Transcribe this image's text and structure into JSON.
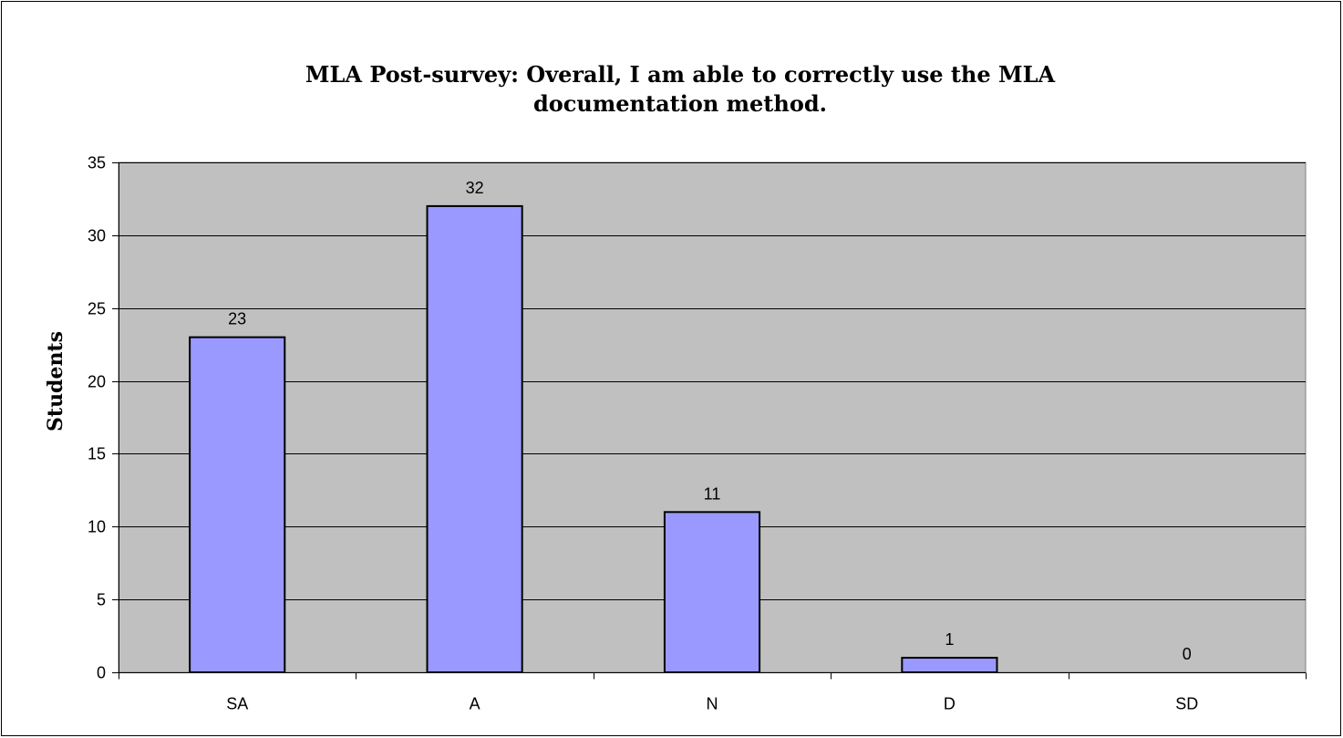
{
  "chart_data": {
    "type": "bar",
    "title_lines": [
      "MLA Post-survey: Overall, I am able to correctly use the MLA",
      "documentation method."
    ],
    "ylabel": "Students",
    "xlabel": "",
    "categories": [
      "SA",
      "A",
      "N",
      "D",
      "SD"
    ],
    "values": [
      23,
      32,
      11,
      1,
      0
    ],
    "data_labels": [
      "23",
      "32",
      "11",
      "1",
      "0"
    ],
    "ylim": [
      0,
      35
    ],
    "yticks": [
      0,
      5,
      10,
      15,
      20,
      25,
      30,
      35
    ],
    "grid": true,
    "legend": "none",
    "colors": {
      "bar_fill": "#9999ff",
      "bar_stroke": "#000000",
      "plot_background": "#c0c0c0",
      "gridline": "#000000"
    }
  }
}
